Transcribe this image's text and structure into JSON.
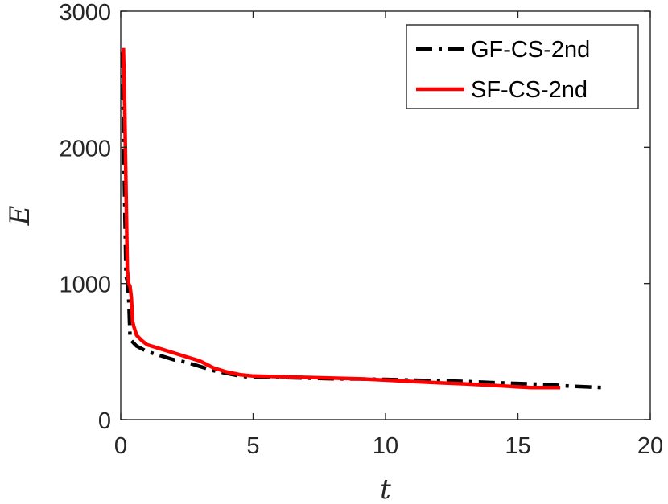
{
  "chart_data": {
    "type": "line",
    "title": "",
    "xlabel": "t",
    "ylabel": "E",
    "xlim": [
      0,
      20
    ],
    "ylim": [
      0,
      3000
    ],
    "xticks": [
      0,
      5,
      10,
      15,
      20
    ],
    "yticks": [
      0,
      1000,
      2000,
      3000
    ],
    "xtick_labels": [
      "0",
      "5",
      "10",
      "15",
      "20"
    ],
    "ytick_labels": [
      "0",
      "1000",
      "2000",
      "3000"
    ],
    "grid": false,
    "legend_position": "top-right",
    "series": [
      {
        "name": "GF-CS-2nd",
        "color": "#000000",
        "line_style": "dash-dot",
        "x": [
          0.05,
          0.1,
          0.15,
          0.2,
          0.25,
          0.3,
          0.35,
          0.4,
          0.5,
          0.6,
          0.8,
          1.0,
          1.5,
          2.0,
          2.5,
          3.0,
          3.5,
          4.0,
          4.5,
          5.0,
          6.0,
          7.0,
          8.0,
          9.0,
          10.0,
          11.0,
          12.0,
          13.0,
          14.0,
          15.0,
          16.0,
          17.0,
          18.2
        ],
        "y": [
          2700,
          2200,
          1600,
          1050,
          1020,
          900,
          620,
          580,
          560,
          540,
          520,
          500,
          470,
          440,
          420,
          390,
          360,
          340,
          320,
          310,
          310,
          305,
          300,
          298,
          295,
          290,
          285,
          280,
          272,
          265,
          258,
          245,
          235
        ]
      },
      {
        "name": "SF-CS-2nd",
        "color": "#ff0000",
        "line_style": "solid",
        "x": [
          0.1,
          0.15,
          0.2,
          0.25,
          0.3,
          0.35,
          0.4,
          0.45,
          0.5,
          0.6,
          0.8,
          1.0,
          1.5,
          2.0,
          2.5,
          3.0,
          3.5,
          4.0,
          4.5,
          5.0,
          6.0,
          7.0,
          8.0,
          9.0,
          10.0,
          11.0,
          12.0,
          13.0,
          14.0,
          15.0,
          15.5,
          16.6
        ],
        "y": [
          2730,
          2300,
          1700,
          1100,
          1000,
          980,
          900,
          720,
          680,
          620,
          580,
          550,
          520,
          490,
          460,
          430,
          380,
          350,
          330,
          320,
          315,
          310,
          305,
          300,
          290,
          280,
          270,
          262,
          252,
          240,
          235,
          235
        ]
      }
    ]
  }
}
